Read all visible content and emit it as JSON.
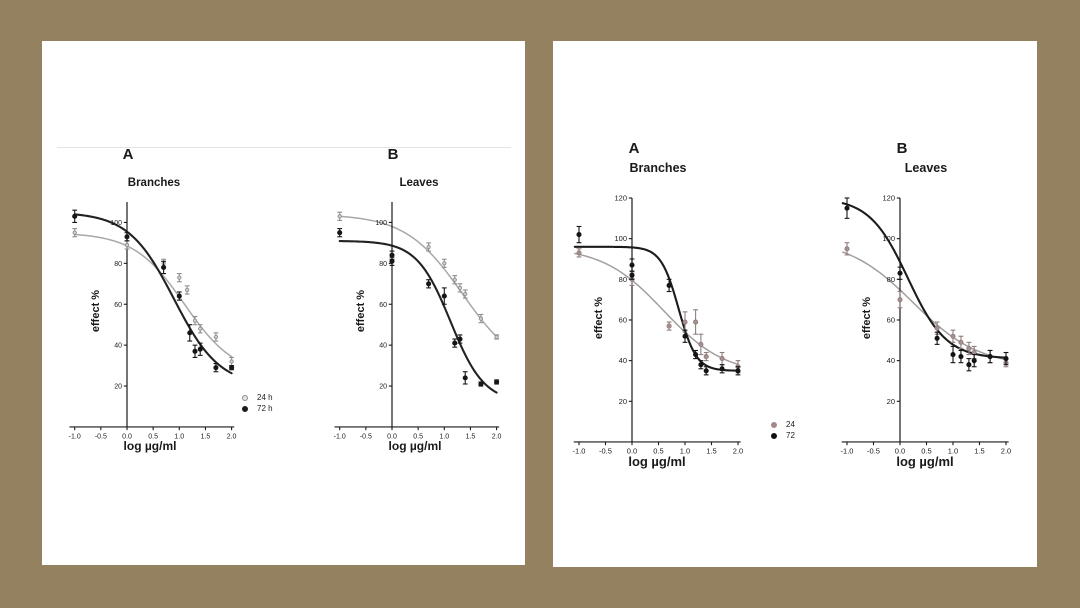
{
  "page": {
    "background_color": "#93815f",
    "card_color": "#ffffff"
  },
  "legends": [
    {
      "items": [
        {
          "label": "24 h",
          "color": "#8f8f8f",
          "open": true
        },
        {
          "label": "72 h",
          "color": "#1b1b1b",
          "open": false
        }
      ]
    },
    {
      "items": [
        {
          "label": "24",
          "color": "#a58888",
          "open": false
        },
        {
          "label": "72",
          "color": "#111111",
          "open": false
        }
      ]
    }
  ],
  "chart_data": [
    {
      "type": "line",
      "panel_label": "A",
      "title": "Branches",
      "xlabel": "log µg/ml",
      "ylabel": "effect %",
      "x_ticks": [
        "-1.0",
        "-0.5",
        "0.0",
        "0.5",
        "1.0",
        "1.5",
        "2.0"
      ],
      "y_ticks": [
        20,
        40,
        60,
        80,
        100
      ],
      "xlim": [
        -1.1,
        2.05
      ],
      "ylim": [
        0,
        110
      ],
      "grid": false,
      "series": [
        {
          "name": "24 h",
          "line_color": "#a8a8a8",
          "marker_fill": "#d0d0d0",
          "marker_stroke": "#8f8f8f",
          "marker_style": "open",
          "points": [
            [
              -1,
              95,
              2
            ],
            [
              0,
              89,
              2
            ],
            [
              0.7,
              80,
              2
            ],
            [
              1,
              73,
              2
            ],
            [
              1.15,
              67,
              2
            ],
            [
              1.3,
              52,
              2
            ],
            [
              1.4,
              48,
              2
            ],
            [
              1.7,
              44,
              2
            ],
            [
              2,
              32,
              2
            ]
          ],
          "fit_4pl": {
            "top": 95,
            "bottom": 25,
            "logec50": 1.1,
            "hill": 0.9
          }
        },
        {
          "name": "72 h",
          "line_color": "#222222",
          "marker_fill": "#161616",
          "marker_stroke": "#161616",
          "marker_style": "filled",
          "points": [
            [
              -1,
              103,
              3
            ],
            [
              0,
              93,
              2
            ],
            [
              0.7,
              78,
              3
            ],
            [
              1,
              64,
              2
            ],
            [
              1.2,
              46,
              4
            ],
            [
              1.3,
              37,
              3
            ],
            [
              1.4,
              38,
              3
            ],
            [
              1.7,
              29,
              2
            ],
            [
              2,
              29,
              1
            ]
          ],
          "fit_4pl": {
            "top": 105,
            "bottom": 20,
            "logec50": 0.9,
            "hill": 1.0
          }
        }
      ]
    },
    {
      "type": "line",
      "panel_label": "B",
      "title": "Leaves",
      "xlabel": "log µg/ml",
      "ylabel": "effect %",
      "x_ticks": [
        "-1.0",
        "-0.5",
        "0.0",
        "0.5",
        "1.0",
        "1.5",
        "2.0"
      ],
      "y_ticks": [
        20,
        40,
        60,
        80,
        100
      ],
      "xlim": [
        -1.1,
        2.05
      ],
      "ylim": [
        0,
        110
      ],
      "grid": false,
      "series": [
        {
          "name": "24 h",
          "line_color": "#a8a8a8",
          "marker_fill": "#d0d0d0",
          "marker_stroke": "#8f8f8f",
          "marker_style": "open",
          "points": [
            [
              -1,
              103,
              2
            ],
            [
              0.7,
              88,
              2
            ],
            [
              1,
              80,
              2
            ],
            [
              1.2,
              72,
              2
            ],
            [
              1.3,
              68,
              2
            ],
            [
              1.4,
              65,
              2
            ],
            [
              1.7,
              53,
              2
            ],
            [
              2,
              44,
              1
            ]
          ],
          "fit_4pl": {
            "top": 104,
            "bottom": 26,
            "logec50": 1.35,
            "hill": 0.8
          }
        },
        {
          "name": "72 h",
          "line_color": "#222222",
          "marker_fill": "#161616",
          "marker_stroke": "#161616",
          "marker_style": "filled",
          "points": [
            [
              -1,
              95,
              2
            ],
            [
              0,
              84,
              2
            ],
            [
              0,
              81,
              2
            ],
            [
              0.7,
              70,
              2
            ],
            [
              1,
              64,
              4
            ],
            [
              1.2,
              41,
              2
            ],
            [
              1.3,
              43,
              2
            ],
            [
              1.4,
              24,
              3
            ],
            [
              1.7,
              21,
              1
            ],
            [
              2,
              22,
              1
            ]
          ],
          "fit_4pl": {
            "top": 91,
            "bottom": 12,
            "logec50": 1.12,
            "hill": 1.35
          }
        }
      ]
    },
    {
      "type": "line",
      "panel_label": "A",
      "title": "Branches",
      "xlabel": "log µg/ml",
      "ylabel": "effect %",
      "x_ticks": [
        "-1.0",
        "-0.5",
        "0.0",
        "0.5",
        "1.0",
        "1.5",
        "2.0"
      ],
      "y_ticks": [
        20,
        40,
        60,
        80,
        100,
        120
      ],
      "xlim": [
        -1.1,
        2.05
      ],
      "ylim": [
        0,
        120
      ],
      "grid": false,
      "series": [
        {
          "name": "24",
          "line_color": "#a39f9f",
          "marker_fill": "#a79090",
          "marker_stroke": "#8f7d7d",
          "marker_style": "filled",
          "points": [
            [
              -1,
              93,
              2
            ],
            [
              0,
              80,
              3
            ],
            [
              0.7,
              57,
              2
            ],
            [
              1,
              59,
              5
            ],
            [
              1.2,
              59,
              6
            ],
            [
              1.3,
              48,
              5
            ],
            [
              1.4,
              42,
              2
            ],
            [
              1.7,
              41,
              3
            ],
            [
              2,
              37,
              3
            ]
          ],
          "fit_4pl": {
            "top": 96,
            "bottom": 33,
            "logec50": 0.6,
            "hill": 0.75
          }
        },
        {
          "name": "72",
          "line_color": "#1c1c1c",
          "marker_fill": "#141414",
          "marker_stroke": "#141414",
          "marker_style": "filled",
          "points": [
            [
              -1,
              102,
              4
            ],
            [
              0,
              87,
              3
            ],
            [
              0,
              82,
              2
            ],
            [
              0.7,
              77,
              3
            ],
            [
              1,
              52,
              3
            ],
            [
              1.2,
              43,
              2
            ],
            [
              1.3,
              38,
              2
            ],
            [
              1.4,
              35,
              2
            ],
            [
              1.7,
              36,
              2
            ],
            [
              2,
              35,
              2
            ]
          ],
          "fit_4pl": {
            "top": 96,
            "bottom": 35,
            "logec50": 0.88,
            "hill": 2.6
          }
        }
      ]
    },
    {
      "type": "line",
      "panel_label": "B",
      "title": "Leaves",
      "xlabel": "log µg/ml",
      "ylabel": "effect %",
      "x_ticks": [
        "-1.0",
        "-0.5",
        "0.0",
        "0.5",
        "1.0",
        "1.5",
        "2.0"
      ],
      "y_ticks": [
        20,
        40,
        60,
        80,
        100,
        120
      ],
      "xlim": [
        -1.1,
        2.05
      ],
      "ylim": [
        0,
        120
      ],
      "grid": false,
      "series": [
        {
          "name": "24",
          "line_color": "#a39f9f",
          "marker_fill": "#a79090",
          "marker_stroke": "#8f7d7d",
          "marker_style": "filled",
          "points": [
            [
              -1,
              95,
              3
            ],
            [
              0,
              70,
              4
            ],
            [
              0.7,
              56,
              3
            ],
            [
              1,
              52,
              3
            ],
            [
              1.15,
              49,
              3
            ],
            [
              1.3,
              46,
              3
            ],
            [
              1.4,
              44,
              3
            ],
            [
              1.7,
              42,
              3
            ],
            [
              2,
              39,
              2
            ]
          ],
          "fit_4pl": {
            "top": 100,
            "bottom": 37,
            "logec50": 0.25,
            "hill": 0.7
          }
        },
        {
          "name": "72",
          "line_color": "#1c1c1c",
          "marker_fill": "#141414",
          "marker_stroke": "#141414",
          "marker_style": "filled",
          "points": [
            [
              -1,
              115,
              5
            ],
            [
              0,
              83,
              3
            ],
            [
              0.7,
              51,
              3
            ],
            [
              1,
              43,
              4
            ],
            [
              1.15,
              42,
              3
            ],
            [
              1.3,
              38,
              3
            ],
            [
              1.4,
              40,
              3
            ],
            [
              1.7,
              42,
              3
            ],
            [
              2,
              41,
              3
            ]
          ],
          "fit_4pl": {
            "top": 120,
            "bottom": 41,
            "logec50": 0.15,
            "hill": 1.2
          }
        }
      ]
    }
  ]
}
